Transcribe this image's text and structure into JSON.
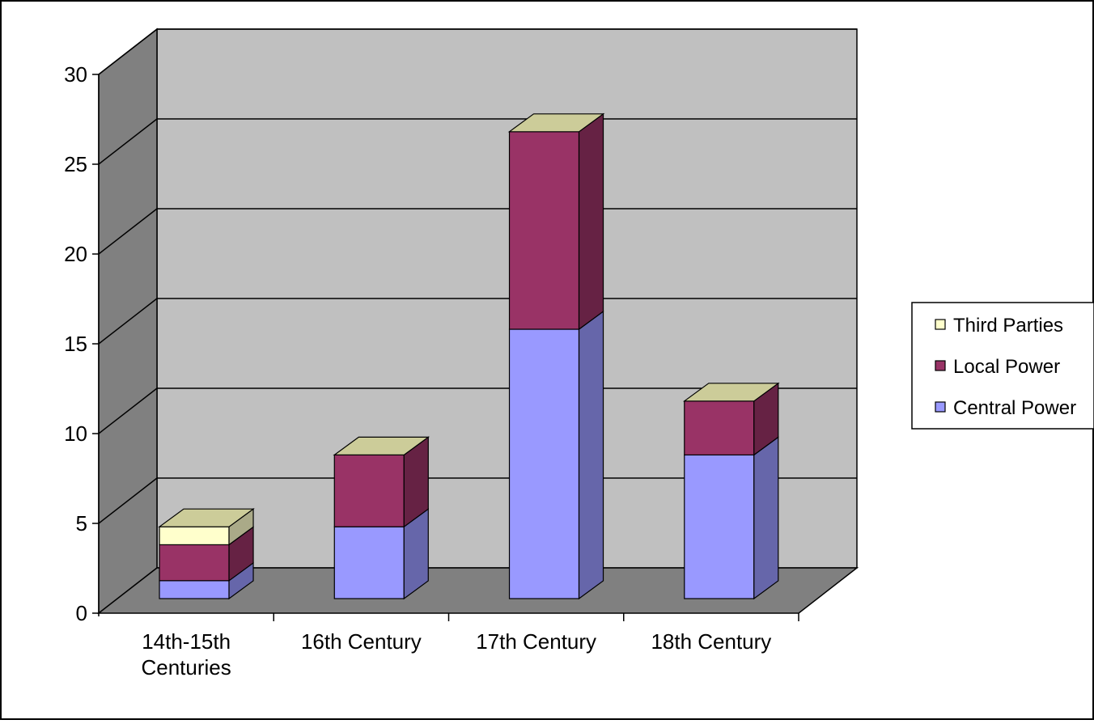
{
  "chart_data": {
    "type": "bar",
    "stacked": true,
    "three_d": true,
    "categories": [
      "14th-15th Centuries",
      "16th Century",
      "17th Century",
      "18th Century"
    ],
    "category_label_lines": [
      [
        "14th-15th",
        "Centuries"
      ],
      [
        "16th Century"
      ],
      [
        "17th Century"
      ],
      [
        "18th Century"
      ]
    ],
    "series": [
      {
        "name": "Central Power",
        "values": [
          1,
          4,
          15,
          8
        ],
        "color": "#9999FF",
        "side_color": "#6666AA"
      },
      {
        "name": "Local Power",
        "values": [
          2,
          4,
          11,
          3
        ],
        "color": "#993366",
        "side_color": "#662244"
      },
      {
        "name": "Third Parties",
        "values": [
          1,
          0,
          0,
          0
        ],
        "color": "#FFFFCC",
        "side_color": "#AAAA88"
      }
    ],
    "top_face_color": "#CCCC99",
    "ylim": [
      0,
      30
    ],
    "yticks": [
      0,
      5,
      10,
      15,
      20,
      25,
      30
    ],
    "grid": true,
    "legend_position": "right",
    "legend_order": [
      "Third Parties",
      "Local Power",
      "Central Power"
    ],
    "wall_color": "#C0C0C0",
    "side_wall_color": "#808080",
    "floor_color": "#808080"
  }
}
